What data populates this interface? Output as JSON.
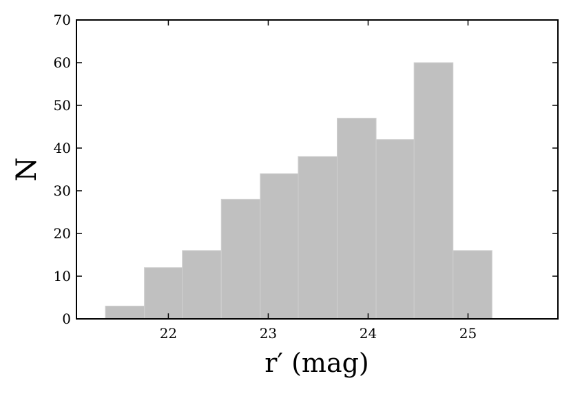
{
  "chart_data": {
    "type": "histogram",
    "xlabel": "r′ (mag)",
    "ylabel": "N",
    "bins": [
      21.37,
      21.76,
      22.14,
      22.53,
      22.92,
      23.3,
      23.69,
      24.08,
      24.46,
      24.85,
      25.24
    ],
    "values": [
      3,
      12,
      16,
      28,
      34,
      38,
      47,
      42,
      60,
      16
    ],
    "color": "#c0c0c0",
    "xlim": [
      21.08,
      25.9
    ],
    "xticks": [
      22,
      23,
      24,
      25
    ],
    "ylim": [
      0,
      70
    ],
    "yticks": [
      0,
      10,
      20,
      30,
      40,
      50,
      60,
      70
    ],
    "grid": false
  }
}
